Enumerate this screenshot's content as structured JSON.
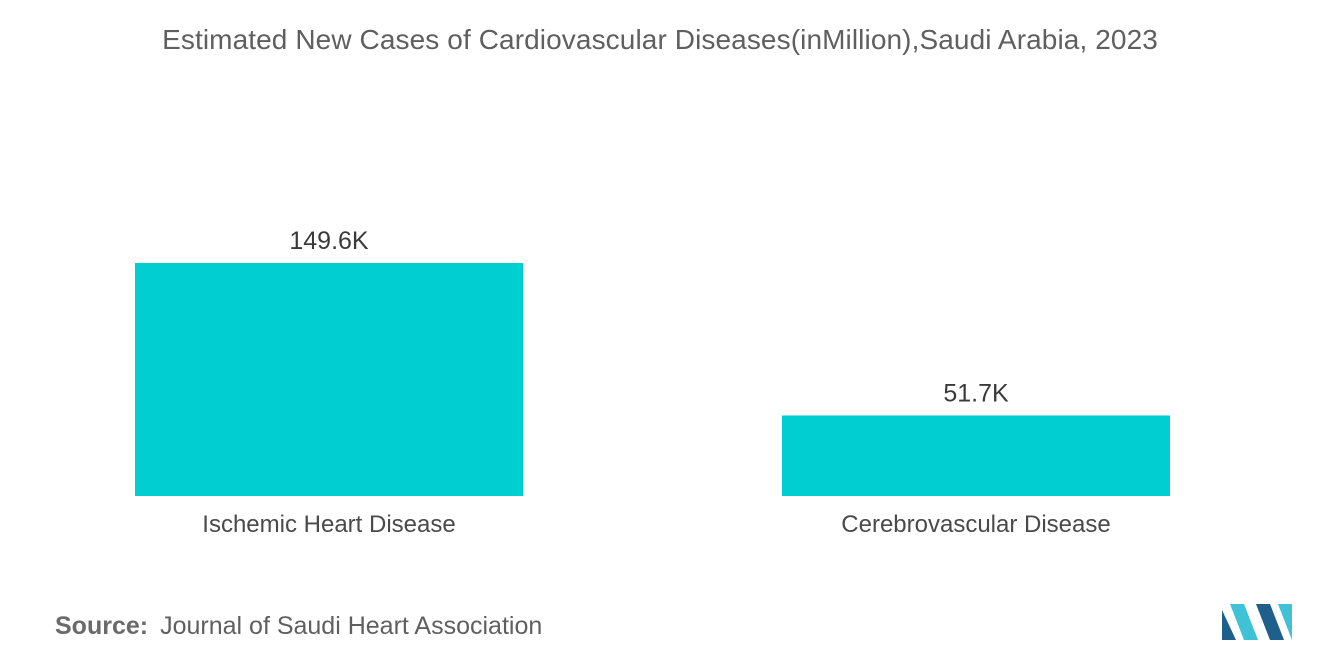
{
  "chart_data": {
    "type": "bar",
    "title": "Estimated New Cases of Cardiovascular Diseases(inMillion),Saudi Arabia, 2023",
    "categories": [
      "Ischemic Heart Disease",
      "Cerebrovascular Disease"
    ],
    "values": [
      149.6,
      51.7
    ],
    "data_labels": [
      "149.6K",
      "51.7K"
    ],
    "xlabel": "",
    "ylabel": "",
    "ylim": [
      0,
      149.6
    ],
    "grid": false,
    "legend": "none",
    "bar_color": "#00CED1"
  },
  "source": {
    "label": "Source:",
    "text": "Journal of Saudi Heart Association"
  },
  "logo": {
    "icon": "mordor-intelligence-logo-icon",
    "color_dark": "#1f5f8b",
    "color_light": "#3fc1d6"
  }
}
